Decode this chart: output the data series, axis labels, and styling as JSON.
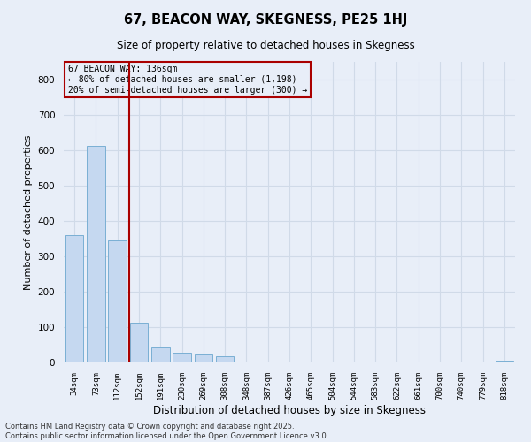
{
  "title": "67, BEACON WAY, SKEGNESS, PE25 1HJ",
  "subtitle": "Size of property relative to detached houses in Skegness",
  "xlabel": "Distribution of detached houses by size in Skegness",
  "ylabel": "Number of detached properties",
  "categories": [
    "34sqm",
    "73sqm",
    "112sqm",
    "152sqm",
    "191sqm",
    "230sqm",
    "269sqm",
    "308sqm",
    "348sqm",
    "387sqm",
    "426sqm",
    "465sqm",
    "504sqm",
    "544sqm",
    "583sqm",
    "622sqm",
    "661sqm",
    "700sqm",
    "740sqm",
    "779sqm",
    "818sqm"
  ],
  "values": [
    360,
    613,
    346,
    113,
    42,
    27,
    22,
    17,
    0,
    0,
    0,
    0,
    0,
    0,
    0,
    0,
    0,
    0,
    0,
    0,
    6
  ],
  "bar_color": "#c5d8f0",
  "bar_edge_color": "#7aafd4",
  "grid_color": "#d0dae8",
  "bg_color": "#e8eef8",
  "vertical_line_x": 2.55,
  "annotation_text": "67 BEACON WAY: 136sqm\n← 80% of detached houses are smaller (1,198)\n20% of semi-detached houses are larger (300) →",
  "annotation_box_color": "#aa0000",
  "footer_line1": "Contains HM Land Registry data © Crown copyright and database right 2025.",
  "footer_line2": "Contains public sector information licensed under the Open Government Licence v3.0.",
  "ylim": [
    0,
    850
  ],
  "yticks": [
    0,
    100,
    200,
    300,
    400,
    500,
    600,
    700,
    800
  ]
}
